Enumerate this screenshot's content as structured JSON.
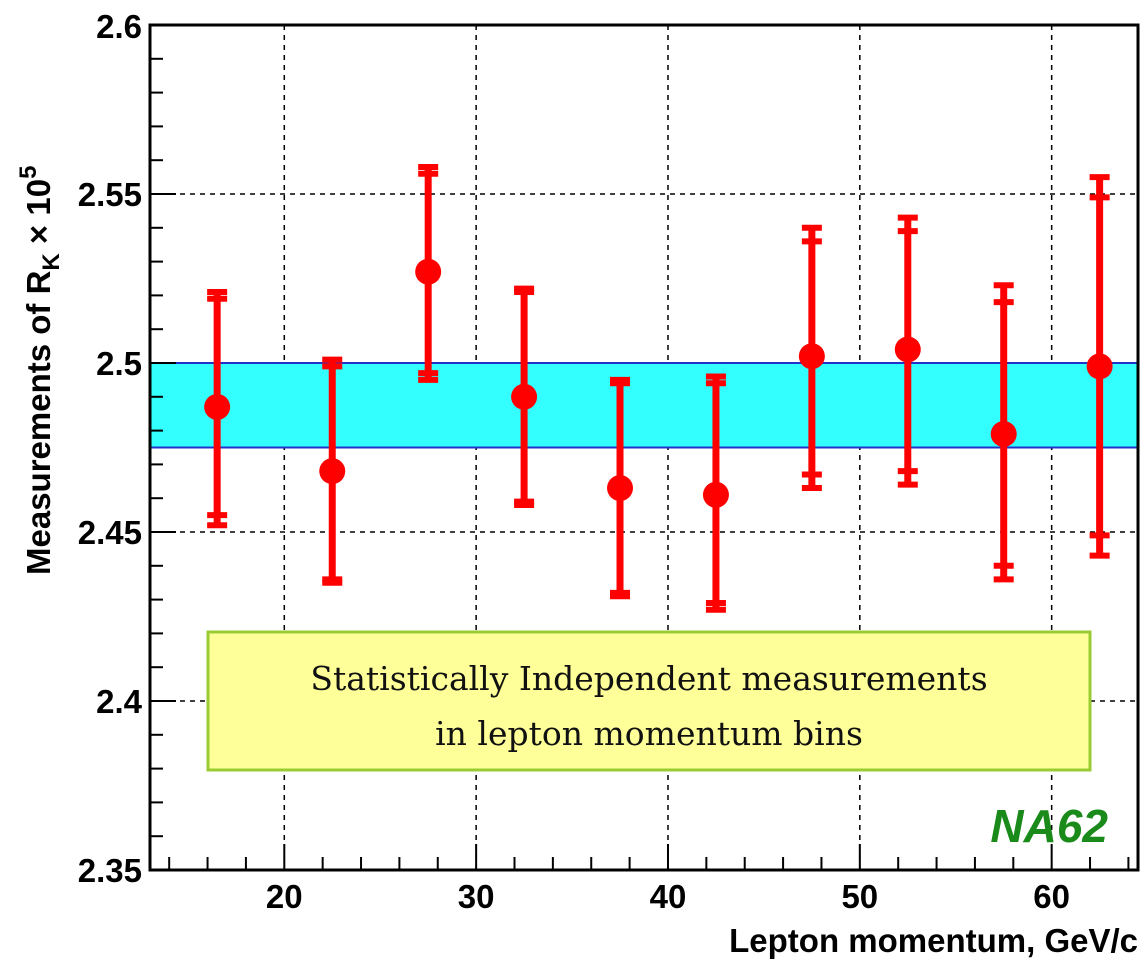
{
  "chart_data": {
    "type": "scatter",
    "xlabel": "Lepton momentum, GeV/c",
    "ylabel_main": "Measurements of R",
    "ylabel_sub": "K",
    "ylabel_tail": " × 10",
    "ylabel_sup": "5",
    "xlim": [
      13,
      64.5
    ],
    "ylim": [
      2.35,
      2.6
    ],
    "x_ticks": [
      20,
      30,
      40,
      50,
      60
    ],
    "y_ticks": [
      2.35,
      2.4,
      2.45,
      2.5,
      2.55,
      2.6
    ],
    "y_tick_labels": [
      "2.35",
      "2.4",
      "2.45",
      "2.5",
      "2.55",
      "2.6"
    ],
    "grid": true,
    "band": {
      "low": 2.475,
      "high": 2.5,
      "color": "#33ffff",
      "edge_color": "#2233cc"
    },
    "series": [
      {
        "color": "#ff0000",
        "points": [
          {
            "x": 16.5,
            "y": 2.487,
            "stat_low": 2.455,
            "stat_high": 2.519,
            "tot_low": 2.452,
            "tot_high": 2.521
          },
          {
            "x": 22.5,
            "y": 2.468,
            "stat_low": 2.436,
            "stat_high": 2.499,
            "tot_low": 2.435,
            "tot_high": 2.501
          },
          {
            "x": 27.5,
            "y": 2.527,
            "stat_low": 2.497,
            "stat_high": 2.556,
            "tot_low": 2.495,
            "tot_high": 2.558
          },
          {
            "x": 32.5,
            "y": 2.49,
            "stat_low": 2.459,
            "stat_high": 2.521,
            "tot_low": 2.458,
            "tot_high": 2.522
          },
          {
            "x": 37.5,
            "y": 2.463,
            "stat_low": 2.432,
            "stat_high": 2.494,
            "tot_low": 2.431,
            "tot_high": 2.495
          },
          {
            "x": 42.5,
            "y": 2.461,
            "stat_low": 2.429,
            "stat_high": 2.494,
            "tot_low": 2.427,
            "tot_high": 2.496
          },
          {
            "x": 47.5,
            "y": 2.502,
            "stat_low": 2.467,
            "stat_high": 2.536,
            "tot_low": 2.463,
            "tot_high": 2.54
          },
          {
            "x": 52.5,
            "y": 2.504,
            "stat_low": 2.468,
            "stat_high": 2.539,
            "tot_low": 2.464,
            "tot_high": 2.543
          },
          {
            "x": 57.5,
            "y": 2.479,
            "stat_low": 2.44,
            "stat_high": 2.518,
            "tot_low": 2.436,
            "tot_high": 2.523
          },
          {
            "x": 62.5,
            "y": 2.499,
            "stat_low": 2.449,
            "stat_high": 2.549,
            "tot_low": 2.443,
            "tot_high": 2.555
          }
        ]
      }
    ],
    "annotation_lines": [
      "Statistically Independent measurements",
      "in lepton momentum bins"
    ],
    "annotation_fill": "#ffff99",
    "annotation_border": "#99cc33",
    "brand_label": "NA62"
  }
}
